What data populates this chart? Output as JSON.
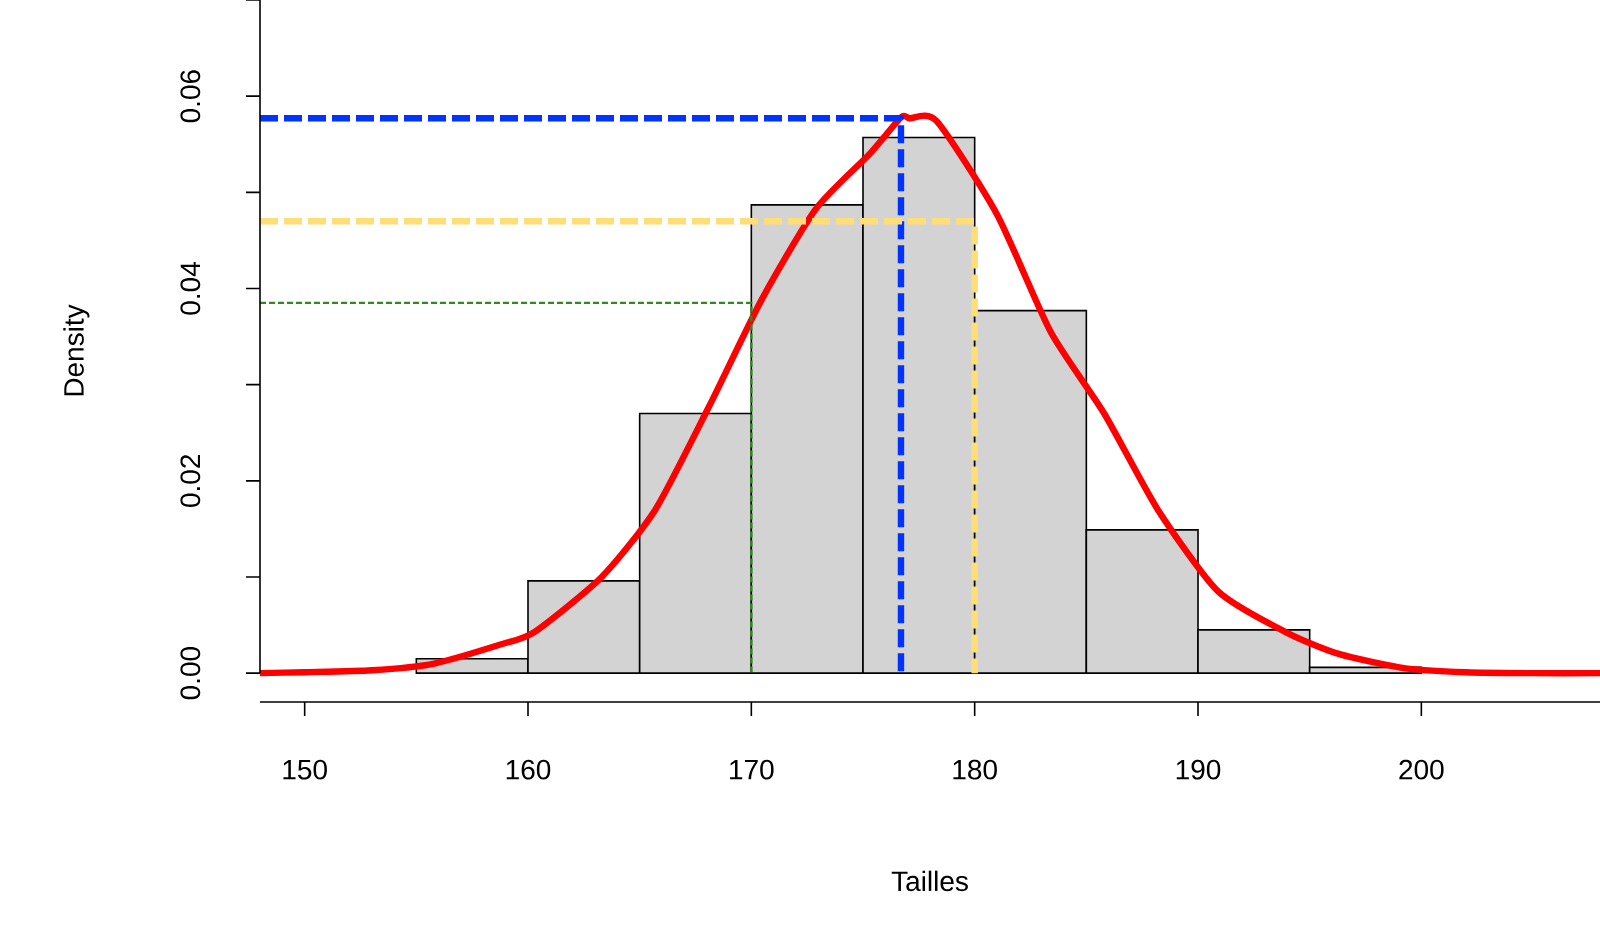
{
  "chart_data": {
    "type": "histogram",
    "xlabel": "Tailles",
    "ylabel": "Density",
    "xlim": [
      148,
      208
    ],
    "ylim": [
      -0.003,
      0.07
    ],
    "xticks": [
      150,
      160,
      170,
      180,
      190,
      200
    ],
    "yticks": [
      {
        "value": 0,
        "label": "0.00"
      },
      {
        "value": 0.01,
        "label": null
      },
      {
        "value": 0.02,
        "label": "0.02"
      },
      {
        "value": 0.03,
        "label": null
      },
      {
        "value": 0.04,
        "label": "0.04"
      },
      {
        "value": 0.05,
        "label": null
      },
      {
        "value": 0.06,
        "label": "0.06"
      },
      {
        "value": 0.07,
        "label": null
      }
    ],
    "grid": false,
    "series": [
      {
        "color": "#d3d3d3",
        "bins": [
          155,
          160,
          165,
          170,
          175,
          180,
          185,
          190,
          195,
          200
        ],
        "values": [
          0.0015,
          0.0096,
          0.027,
          0.0487,
          0.0557,
          0.0377,
          0.0149,
          0.0045,
          0.0006
        ]
      },
      {
        "type": "line",
        "color": "#ff0000",
        "line_style": "solid",
        "x": [
          148,
          150,
          153,
          155.8,
          158.8,
          160.3,
          163.3,
          165.7,
          168.1,
          170.5,
          172.9,
          175.3,
          176.7,
          177.1,
          178.3,
          181.0,
          183.4,
          185.8,
          188.2,
          190.9,
          193.9,
          196.3,
          199.3,
          202,
          205,
          208
        ],
        "values": [
          0,
          0.0001,
          0.0003,
          0.001,
          0.003,
          0.0043,
          0.01,
          0.017,
          0.0277,
          0.039,
          0.0483,
          0.054,
          0.0578,
          0.0577,
          0.0574,
          0.0477,
          0.0355,
          0.027,
          0.017,
          0.0085,
          0.0043,
          0.002,
          0.0005,
          0.0001,
          0,
          0
        ]
      },
      {
        "type": "line",
        "color": "#0033ff",
        "line_style": "dashed",
        "x": [
          148,
          176.7,
          176.7
        ],
        "values": [
          0.0577,
          0.0577,
          0
        ]
      },
      {
        "type": "line",
        "color": "#ffdd77",
        "line_style": "dashed",
        "x": [
          148,
          180,
          180
        ],
        "values": [
          0.047,
          0.047,
          0
        ]
      },
      {
        "type": "line",
        "color": "#2e8b1e",
        "line_style": "dotted",
        "x": [
          148,
          170,
          170
        ],
        "values": [
          0.0385,
          0.0385,
          0
        ]
      }
    ]
  }
}
